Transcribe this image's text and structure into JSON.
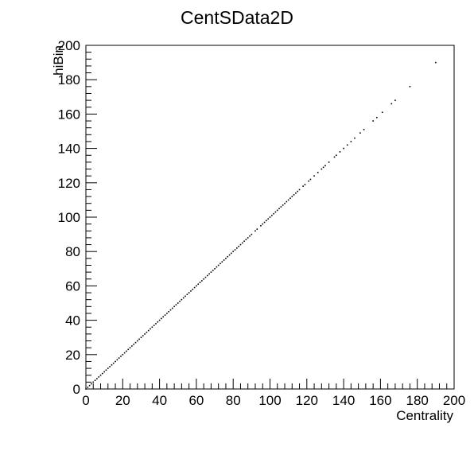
{
  "chart_data": {
    "type": "scatter",
    "title": "CentSData2D",
    "xlabel": "Centrality",
    "ylabel": "hiBin",
    "xlim": [
      0,
      200
    ],
    "ylim": [
      0,
      200
    ],
    "xticks": [
      0,
      20,
      40,
      60,
      80,
      100,
      120,
      140,
      160,
      180,
      200
    ],
    "yticks": [
      0,
      20,
      40,
      60,
      80,
      100,
      120,
      140,
      160,
      180,
      200
    ],
    "minor_ticks_per_major": 5,
    "grid": false,
    "legend": "none",
    "marker_color": "#000000",
    "series": [
      {
        "x": [
          0,
          1,
          2,
          3,
          4,
          5,
          6,
          7,
          8,
          9,
          10,
          11,
          12,
          13,
          14,
          15,
          16,
          17,
          18,
          19,
          20,
          21,
          22,
          23,
          24,
          25,
          26,
          27,
          28,
          29,
          30,
          31,
          32,
          33,
          34,
          35,
          36,
          37,
          38,
          39,
          40,
          41,
          42,
          43,
          44,
          45,
          46,
          47,
          48,
          49,
          50,
          51,
          52,
          53,
          54,
          55,
          56,
          57,
          58,
          59,
          60,
          61,
          62,
          63,
          64,
          65,
          66,
          67,
          68,
          69,
          70,
          71,
          72,
          73,
          74,
          75,
          76,
          77,
          78,
          79,
          80,
          81,
          82,
          83,
          84,
          85,
          86,
          87,
          88,
          89,
          90,
          92,
          93,
          95,
          96,
          97,
          98,
          99,
          100,
          101,
          102,
          103,
          104,
          105,
          106,
          107,
          108,
          109,
          110,
          111,
          112,
          113,
          114,
          115,
          116,
          118,
          119,
          121,
          122,
          124,
          126,
          128,
          129,
          130,
          132,
          135,
          136,
          138,
          140,
          142,
          144,
          146,
          149,
          151,
          156,
          158,
          161,
          166,
          168,
          176,
          190
        ],
        "y": [
          0,
          1,
          2,
          3,
          4,
          5,
          6,
          7,
          8,
          9,
          10,
          11,
          12,
          13,
          14,
          15,
          16,
          17,
          18,
          19,
          20,
          21,
          22,
          23,
          24,
          25,
          26,
          27,
          28,
          29,
          30,
          31,
          32,
          33,
          34,
          35,
          36,
          37,
          38,
          39,
          40,
          41,
          42,
          43,
          44,
          45,
          46,
          47,
          48,
          49,
          50,
          51,
          52,
          53,
          54,
          55,
          56,
          57,
          58,
          59,
          60,
          61,
          62,
          63,
          64,
          65,
          66,
          67,
          68,
          69,
          70,
          71,
          72,
          73,
          74,
          75,
          76,
          77,
          78,
          79,
          80,
          81,
          82,
          83,
          84,
          85,
          86,
          87,
          88,
          89,
          90,
          92,
          93,
          95,
          96,
          97,
          98,
          99,
          100,
          101,
          102,
          103,
          104,
          105,
          106,
          107,
          108,
          109,
          110,
          111,
          112,
          113,
          114,
          115,
          116,
          118,
          119,
          121,
          122,
          124,
          126,
          128,
          129,
          130,
          132,
          135,
          136,
          138,
          140,
          142,
          144,
          146,
          149,
          151,
          156,
          158,
          161,
          166,
          168,
          176,
          190
        ]
      }
    ]
  }
}
